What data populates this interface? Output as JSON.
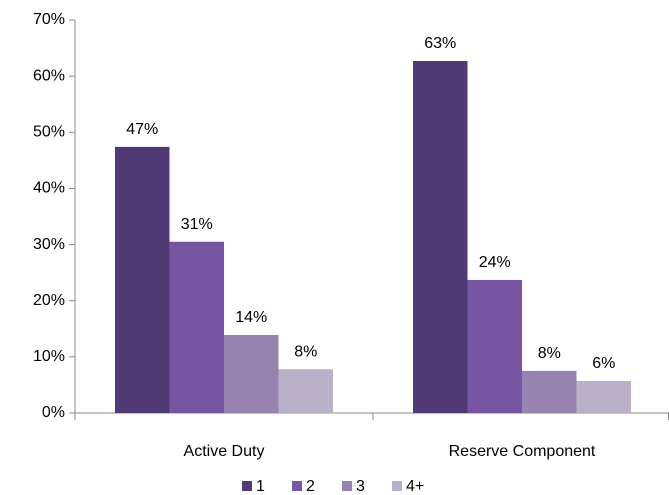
{
  "chart_data": {
    "type": "bar",
    "categories": [
      "Active Duty",
      "Reserve Component"
    ],
    "series": [
      {
        "name": "1",
        "color": "#4f3a75",
        "values": [
          47.4,
          62.7
        ],
        "value_labels": [
          "47%",
          "63%"
        ]
      },
      {
        "name": "2",
        "color": "#7855a3",
        "values": [
          30.5,
          23.7
        ],
        "value_labels": [
          "31%",
          "24%"
        ]
      },
      {
        "name": "3",
        "color": "#9683b0",
        "values": [
          13.9,
          7.5
        ],
        "value_labels": [
          "14%",
          "8%"
        ]
      },
      {
        "name": "4+",
        "color": "#bbb0c9",
        "values": [
          7.8,
          5.7
        ],
        "value_labels": [
          "8%",
          "6%"
        ]
      }
    ],
    "ylim": [
      0,
      70
    ],
    "yticks": [
      {
        "value": 0,
        "label": "0%"
      },
      {
        "value": 10,
        "label": "10%"
      },
      {
        "value": 20,
        "label": "20%"
      },
      {
        "value": 30,
        "label": "30%"
      },
      {
        "value": 40,
        "label": "40%"
      },
      {
        "value": 50,
        "label": "50%"
      },
      {
        "value": 60,
        "label": "60%"
      },
      {
        "value": 70,
        "label": "70%"
      }
    ],
    "grid": false,
    "legend": "bottom"
  }
}
